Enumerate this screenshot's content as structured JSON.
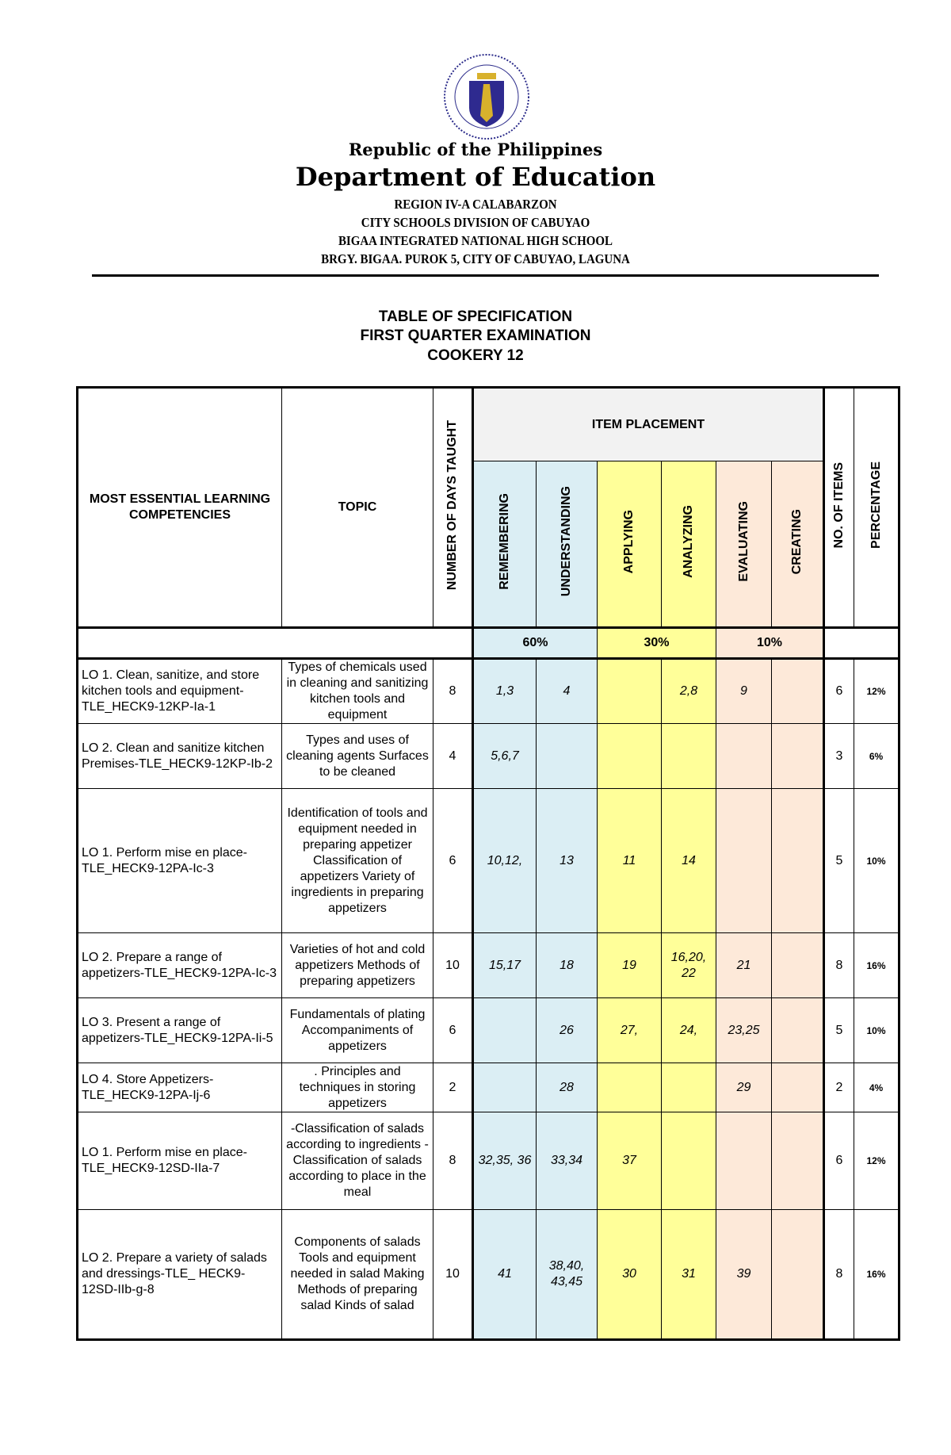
{
  "letterhead": {
    "logo_text": "KAGAWARAN NG EDUKASYON",
    "republic": "Republic of the Philippines",
    "department": "Department of Education",
    "lines": [
      "REGION IV-A CALABARZON",
      "CITY SCHOOLS DIVISION OF CABUYAO",
      "BIGAA INTEGRATED NATIONAL HIGH SCHOOL",
      "BRGY. BIGAA. PUROK 5, CITY OF CABUYAO, LAGUNA"
    ]
  },
  "title": [
    "TABLE OF SPECIFICATION",
    "FIRST QUARTER EXAMINATION",
    "COOKERY 12"
  ],
  "colors": {
    "remembering_understanding": "#dbeef4",
    "applying_analyzing": "#ffff99",
    "evaluating_creating": "#fde9d9",
    "header": "#f2f2f2"
  },
  "table": {
    "headers": {
      "competencies": "MOST ESSENTIAL LEARNING COMPETENCIES",
      "topic": "TOPIC",
      "days": "NUMBER OF DAYS TAUGHT",
      "item_placement": "ITEM PLACEMENT",
      "remembering": "REMEMBERING",
      "understanding": "UNDERSTANDING",
      "applying": "APPLYING",
      "analyzing": "ANALYZING",
      "evaluating": "EVALUATING",
      "creating": "CREATING",
      "items": "NO. OF ITEMS",
      "percentage": "PERCENTAGE"
    },
    "weights": {
      "lower": "60%",
      "middle": "30%",
      "higher": "10%"
    },
    "rows": [
      {
        "lc": "LO 1. Clean, sanitize, and store kitchen tools and equipment-TLE_HECK9-12KP-Ia-1",
        "topic": "Types of chemicals used in cleaning and sanitizing kitchen tools and equipment",
        "days": "8",
        "rem": "1,3",
        "und": "4",
        "app": "",
        "ana": "2,8",
        "eva": "9",
        "cre": "",
        "items": "6",
        "pct": "12%"
      },
      {
        "lc": "LO 2. Clean and sanitize kitchen Premises-TLE_HECK9-12KP-Ib-2",
        "topic": "Types and uses of cleaning agents Surfaces to be cleaned",
        "days": "4",
        "rem": "5,6,7",
        "und": "",
        "app": "",
        "ana": "",
        "eva": "",
        "cre": "",
        "items": "3",
        "pct": "6%"
      },
      {
        "lc": "LO 1. Perform mise en place-TLE_HECK9-12PA-Ic-3",
        "topic": "Identification of tools and equipment needed in preparing appetizer Classification of appetizers Variety of ingredients in preparing appetizers",
        "days": "6",
        "rem": "10,12,",
        "und": "13",
        "app": "11",
        "ana": "14",
        "eva": "",
        "cre": "",
        "items": "5",
        "pct": "10%"
      },
      {
        "lc": "LO 2. Prepare a range of appetizers-TLE_HECK9-12PA-Ic-3",
        "topic": "Varieties of hot and cold appetizers Methods of preparing appetizers",
        "days": "10",
        "rem": "15,17",
        "und": "18",
        "app": "19",
        "ana": "16,20, 22",
        "eva": "21",
        "cre": "",
        "items": "8",
        "pct": "16%"
      },
      {
        "lc": "LO 3. Present a range of appetizers-TLE_HECK9-12PA-Ii-5",
        "topic": "Fundamentals of plating Accompaniments of appetizers",
        "days": "6",
        "rem": "",
        "und": "26",
        "app": "27,",
        "ana": "24,",
        "eva": "23,25",
        "cre": "",
        "items": "5",
        "pct": "10%"
      },
      {
        "lc": "LO 4. Store Appetizers-TLE_HECK9-12PA-Ij-6",
        "topic": ". Principles and techniques in storing appetizers",
        "days": "2",
        "rem": "",
        "und": "28",
        "app": "",
        "ana": "",
        "eva": "29",
        "cre": "",
        "items": "2",
        "pct": "4%"
      },
      {
        "lc": "LO 1. Perform mise en place-TLE_HECK9-12SD-IIa-7",
        "topic": "-Classification of salads according to ingredients -Classification of salads according to place in the meal",
        "days": "8",
        "rem": "32,35, 36",
        "und": "33,34",
        "app": "37",
        "ana": "",
        "eva": "",
        "cre": "",
        "items": "6",
        "pct": "12%"
      },
      {
        "lc": "LO 2. Prepare a variety of salads and dressings-TLE_ HECK9- 12SD-IIb-g-8",
        "topic": "Components of salads Tools and equipment needed in salad Making Methods of preparing salad Kinds of salad",
        "days": "10",
        "rem": "41",
        "und": "38,40, 43,45",
        "app": "30",
        "ana": "31",
        "eva": "39",
        "cre": "",
        "items": "8",
        "pct": "16%"
      }
    ]
  }
}
